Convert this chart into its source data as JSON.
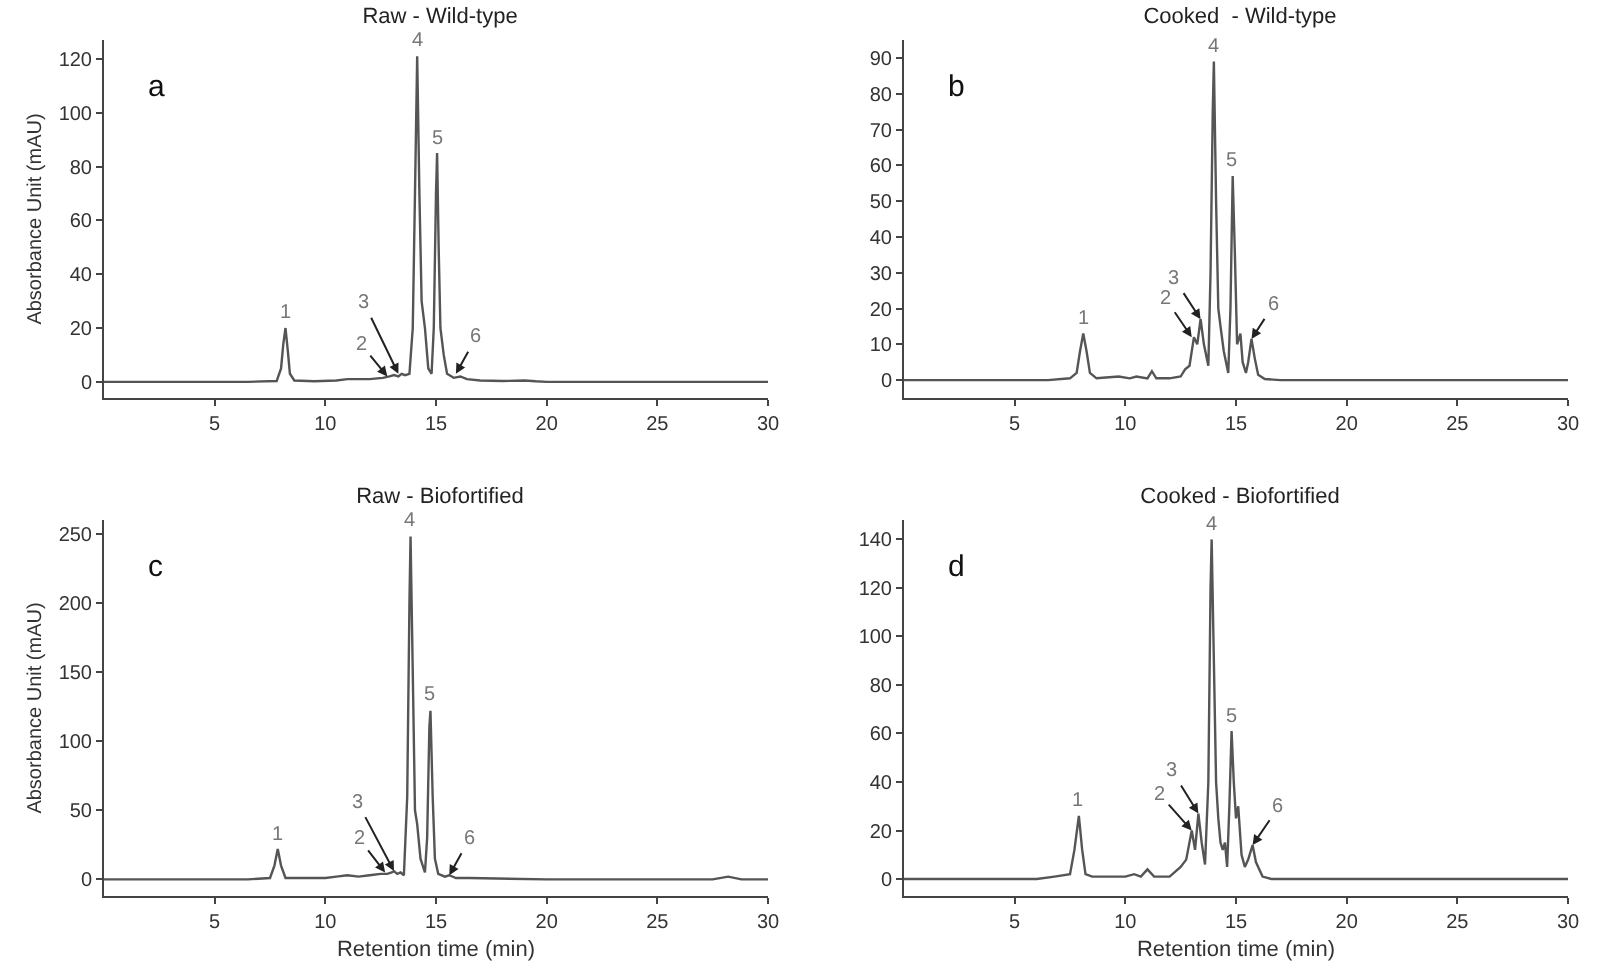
{
  "chart_data": [
    {
      "type": "line",
      "title": "Raw - Wild-type",
      "ylabel": "Absorbance Unit (mAU)",
      "xlim": [
        0,
        30
      ],
      "xticks": [
        5,
        10,
        15,
        20,
        25,
        30
      ],
      "ylim": [
        -6,
        127
      ],
      "yticks": [
        0,
        20,
        40,
        60,
        80,
        100,
        120
      ],
      "annotations": [
        "a",
        {
          "text": "1",
          "x": 8.2,
          "y": 20
        },
        {
          "text": "2",
          "x": 12.8,
          "y": 2
        },
        {
          "text": "3",
          "x": 13.3,
          "y": 3
        },
        {
          "text": "4",
          "x": 14.15,
          "y": 121
        },
        {
          "text": "5",
          "x": 15.05,
          "y": 85
        },
        {
          "text": "6",
          "x": 15.9,
          "y": 3
        }
      ],
      "series": [
        {
          "color": "#555555",
          "x": [
            0,
            3,
            6.5,
            7.8,
            8.0,
            8.1,
            8.2,
            8.3,
            8.4,
            8.6,
            9.5,
            10.5,
            11,
            12,
            12.6,
            12.9,
            13.1,
            13.3,
            13.45,
            13.6,
            13.8,
            13.95,
            14.05,
            14.15,
            14.25,
            14.35,
            14.5,
            14.65,
            14.8,
            14.9,
            15.0,
            15.05,
            15.12,
            15.2,
            15.35,
            15.5,
            15.8,
            16.1,
            16.4,
            17,
            18,
            19,
            19.5,
            20,
            25,
            30
          ],
          "values": [
            0,
            0,
            0,
            0.3,
            5,
            14,
            20,
            12,
            3,
            0.5,
            0.2,
            0.5,
            1,
            1,
            1.5,
            2,
            2.5,
            2,
            3,
            2.5,
            3,
            20,
            70,
            121,
            70,
            30,
            20,
            5,
            3,
            20,
            70,
            85,
            50,
            20,
            10,
            3,
            1.5,
            2,
            1,
            0.5,
            0.3,
            0.5,
            0.2,
            0,
            0,
            0
          ]
        }
      ]
    },
    {
      "type": "line",
      "title": "Cooked  - Wild-type",
      "xlim": [
        0,
        30
      ],
      "xticks": [
        5,
        10,
        15,
        20,
        25,
        30
      ],
      "ylim": [
        -5,
        95
      ],
      "yticks": [
        0,
        10,
        20,
        30,
        40,
        50,
        60,
        70,
        80,
        90
      ],
      "annotations": [
        "b",
        {
          "text": "1",
          "x": 8.1,
          "y": 13
        },
        {
          "text": "2",
          "x": 13.0,
          "y": 12
        },
        {
          "text": "3",
          "x": 13.4,
          "y": 17
        },
        {
          "text": "4",
          "x": 14.0,
          "y": 89
        },
        {
          "text": "5",
          "x": 14.85,
          "y": 57
        },
        {
          "text": "6",
          "x": 15.7,
          "y": 11.5
        }
      ],
      "series": [
        {
          "color": "#555555",
          "x": [
            0,
            3,
            6.5,
            7.5,
            7.8,
            7.95,
            8.1,
            8.25,
            8.4,
            8.7,
            9.7,
            10.2,
            10.5,
            11.0,
            11.2,
            11.4,
            12.0,
            12.5,
            12.7,
            12.9,
            13.1,
            13.25,
            13.4,
            13.55,
            13.75,
            13.85,
            13.95,
            14.0,
            14.1,
            14.2,
            14.3,
            14.45,
            14.65,
            14.75,
            14.85,
            14.95,
            15.05,
            15.2,
            15.3,
            15.45,
            15.55,
            15.7,
            15.85,
            16.0,
            16.3,
            17,
            20,
            22.5,
            25,
            30
          ],
          "values": [
            0,
            0,
            0,
            0.5,
            2,
            8,
            13,
            8,
            2,
            0.5,
            1,
            0.5,
            1,
            0.5,
            2.5,
            0.5,
            0.5,
            1,
            3,
            4,
            12,
            10,
            17,
            10,
            4,
            30,
            75,
            89,
            50,
            20,
            15,
            8,
            2,
            20,
            57,
            35,
            10,
            13,
            5,
            2,
            5,
            11.5,
            6,
            1.5,
            0.3,
            0,
            0,
            0,
            0,
            0
          ]
        }
      ]
    },
    {
      "type": "line",
      "title": "Raw - Biofortified",
      "ylabel": "Absorbance Unit (mAU)",
      "xlabel": "Retention time (min)",
      "xlim": [
        0,
        30
      ],
      "xticks": [
        5,
        10,
        15,
        20,
        25,
        30
      ],
      "ylim": [
        -12,
        260
      ],
      "yticks": [
        0,
        50,
        100,
        150,
        200,
        250
      ],
      "annotations": [
        "c",
        {
          "text": "1",
          "x": 7.85,
          "y": 22
        },
        {
          "text": "2",
          "x": 12.7,
          "y": 5
        },
        {
          "text": "3",
          "x": 13.1,
          "y": 6
        },
        {
          "text": "4",
          "x": 13.85,
          "y": 248
        },
        {
          "text": "5",
          "x": 14.75,
          "y": 122
        },
        {
          "text": "6",
          "x": 15.6,
          "y": 3
        }
      ],
      "series": [
        {
          "color": "#555555",
          "x": [
            0,
            3,
            6.5,
            7.5,
            7.7,
            7.85,
            8.0,
            8.2,
            8.6,
            10,
            10.5,
            11,
            11.5,
            12,
            12.5,
            12.8,
            13.0,
            13.1,
            13.25,
            13.4,
            13.55,
            13.7,
            13.8,
            13.85,
            13.95,
            14.05,
            14.15,
            14.3,
            14.5,
            14.6,
            14.7,
            14.75,
            14.85,
            14.95,
            15.1,
            15.4,
            15.6,
            15.9,
            16.5,
            20,
            27.5,
            28.2,
            28.8,
            30
          ],
          "values": [
            0,
            0,
            0,
            1,
            10,
            22,
            10,
            1,
            1,
            1,
            2,
            3,
            2,
            3,
            4,
            4,
            5,
            6,
            4,
            5,
            3,
            60,
            200,
            248,
            150,
            50,
            40,
            15,
            5,
            30,
            110,
            122,
            60,
            15,
            4,
            2,
            3,
            1,
            1,
            0,
            0,
            2,
            0,
            0
          ]
        }
      ]
    },
    {
      "type": "line",
      "title": "Cooked - Biofortified",
      "xlabel": "Retention time (min)",
      "xlim": [
        0,
        30
      ],
      "xticks": [
        5,
        10,
        15,
        20,
        25,
        30
      ],
      "ylim": [
        -7,
        148
      ],
      "yticks": [
        0,
        20,
        40,
        60,
        80,
        100,
        120,
        140
      ],
      "annotations": [
        "d",
        {
          "text": "1",
          "x": 7.9,
          "y": 26
        },
        {
          "text": "2",
          "x": 13.0,
          "y": 20
        },
        {
          "text": "3",
          "x": 13.3,
          "y": 27
        },
        {
          "text": "4",
          "x": 13.9,
          "y": 140
        },
        {
          "text": "5",
          "x": 14.8,
          "y": 61
        },
        {
          "text": "6",
          "x": 15.75,
          "y": 14
        }
      ],
      "series": [
        {
          "color": "#555555",
          "x": [
            0,
            3,
            6,
            6.8,
            7.5,
            7.7,
            7.9,
            8.05,
            8.2,
            8.5,
            9.5,
            10.0,
            10.4,
            10.7,
            11.0,
            11.3,
            12.0,
            12.5,
            12.75,
            13.0,
            13.15,
            13.3,
            13.45,
            13.6,
            13.75,
            13.85,
            13.9,
            14.0,
            14.1,
            14.2,
            14.3,
            14.4,
            14.5,
            14.6,
            14.7,
            14.8,
            14.9,
            15.0,
            15.1,
            15.25,
            15.4,
            15.55,
            15.75,
            15.9,
            16.2,
            16.6,
            20,
            25,
            30
          ],
          "values": [
            0,
            0,
            0,
            1,
            2,
            12,
            26,
            12,
            2,
            1,
            1,
            1,
            2,
            1,
            4,
            1,
            1,
            5,
            8,
            20,
            12,
            27,
            15,
            6,
            40,
            120,
            140,
            90,
            40,
            25,
            15,
            12,
            15,
            5,
            30,
            61,
            40,
            25,
            30,
            10,
            5,
            8,
            14,
            7,
            1,
            0,
            0,
            0,
            0
          ]
        }
      ]
    }
  ]
}
